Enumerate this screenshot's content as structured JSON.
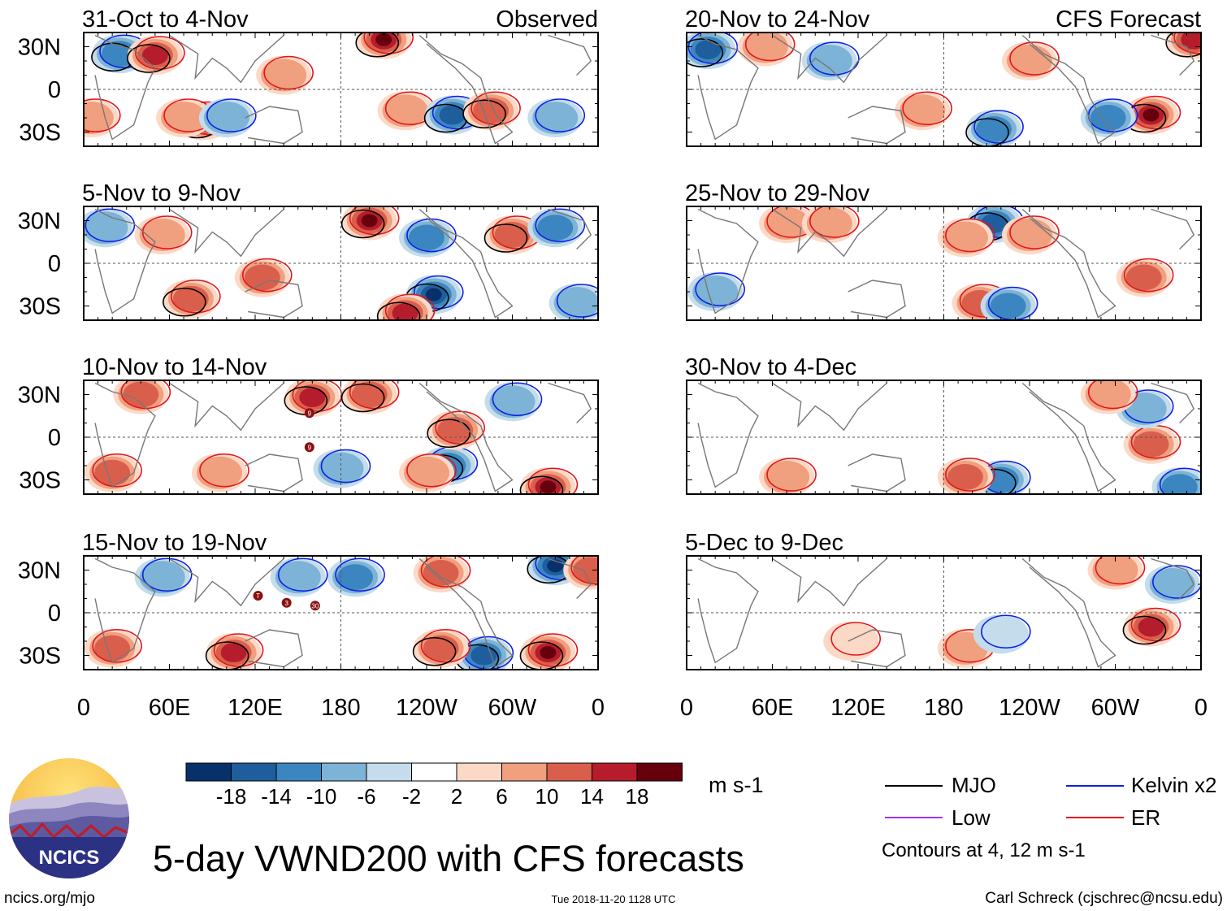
{
  "chart_data": {
    "type": "heatmap",
    "title": "5-day VWND200 with CFS forecasts",
    "variable": "VWND200",
    "units": "m s-1",
    "x_axis": {
      "tick_labels": [
        "0",
        "60E",
        "120E",
        "180",
        "120W",
        "60W",
        "0"
      ],
      "tick_values_deg_east": [
        0,
        60,
        120,
        180,
        240,
        300,
        360
      ],
      "range_deg_east": [
        0,
        360
      ]
    },
    "y_axis": {
      "tick_labels": [
        "30N",
        "0",
        "30S"
      ],
      "tick_values_deg": [
        30,
        0,
        -30
      ],
      "range_deg": [
        -40,
        40
      ]
    },
    "observed_label": "Observed",
    "forecast_label": "CFS Forecast",
    "panels_observed": [
      {
        "label": "31-Oct to 4-Nov",
        "cells": [
          {
            "lon": 25,
            "lat": 25,
            "v": -12
          },
          {
            "lon": 50,
            "lat": 24,
            "v": 14
          },
          {
            "lon": 84,
            "lat": -22,
            "v": 22
          },
          {
            "lon": 70,
            "lat": -20,
            "v": 6
          },
          {
            "lon": 100,
            "lat": -20,
            "v": -8
          },
          {
            "lon": 140,
            "lat": 10,
            "v": 6
          },
          {
            "lon": 210,
            "lat": 35,
            "v": 18
          },
          {
            "lon": 225,
            "lat": -15,
            "v": 8
          },
          {
            "lon": 258,
            "lat": -18,
            "v": -14
          },
          {
            "lon": 285,
            "lat": -15,
            "v": 12
          },
          {
            "lon": 330,
            "lat": -20,
            "v": -8
          },
          {
            "lon": 5,
            "lat": -20,
            "v": 8
          }
        ]
      },
      {
        "label": "5-Nov to 9-Nov",
        "cells": [
          {
            "lon": 15,
            "lat": 25,
            "v": -6
          },
          {
            "lon": 55,
            "lat": 20,
            "v": 8
          },
          {
            "lon": 75,
            "lat": -25,
            "v": 12
          },
          {
            "lon": 125,
            "lat": -10,
            "v": 10
          },
          {
            "lon": 200,
            "lat": 30,
            "v": 22
          },
          {
            "lon": 245,
            "lat": -22,
            "v": -18
          },
          {
            "lon": 240,
            "lat": 18,
            "v": -10
          },
          {
            "lon": 225,
            "lat": -35,
            "v": 14
          },
          {
            "lon": 300,
            "lat": 20,
            "v": 12
          },
          {
            "lon": 330,
            "lat": 25,
            "v": -10
          },
          {
            "lon": 345,
            "lat": -28,
            "v": -8
          }
        ]
      },
      {
        "label": "10-Nov to 14-Nov",
        "cells": [
          {
            "lon": 40,
            "lat": 30,
            "v": 10
          },
          {
            "lon": 160,
            "lat": 28,
            "v": 14
          },
          {
            "lon": 200,
            "lat": 30,
            "v": 12
          },
          {
            "lon": 255,
            "lat": -20,
            "v": -12
          },
          {
            "lon": 260,
            "lat": 5,
            "v": 12
          },
          {
            "lon": 240,
            "lat": -25,
            "v": 8
          },
          {
            "lon": 180,
            "lat": -22,
            "v": -8
          },
          {
            "lon": 325,
            "lat": -35,
            "v": 22
          },
          {
            "lon": 300,
            "lat": 25,
            "v": -8
          },
          {
            "lon": 95,
            "lat": -25,
            "v": 8
          },
          {
            "lon": 20,
            "lat": -25,
            "v": 10
          }
        ]
      },
      {
        "label": "15-Nov to 19-Nov",
        "cells": [
          {
            "lon": 330,
            "lat": 33,
            "v": -22
          },
          {
            "lon": 325,
            "lat": -28,
            "v": 22
          },
          {
            "lon": 280,
            "lat": -30,
            "v": -16
          },
          {
            "lon": 250,
            "lat": -25,
            "v": 12
          },
          {
            "lon": 105,
            "lat": -28,
            "v": 14
          },
          {
            "lon": 20,
            "lat": -25,
            "v": 10
          },
          {
            "lon": 190,
            "lat": 25,
            "v": -10
          },
          {
            "lon": 250,
            "lat": 28,
            "v": 10
          },
          {
            "lon": 150,
            "lat": 25,
            "v": -8
          },
          {
            "lon": 55,
            "lat": 25,
            "v": -6
          },
          {
            "lon": 355,
            "lat": 30,
            "v": 10
          }
        ]
      }
    ],
    "panels_forecast": [
      {
        "label": "20-Nov to 24-Nov",
        "cells": [
          {
            "lon": 15,
            "lat": 28,
            "v": -14
          },
          {
            "lon": 325,
            "lat": -18,
            "v": 18
          },
          {
            "lon": 295,
            "lat": -20,
            "v": -10
          },
          {
            "lon": 215,
            "lat": -28,
            "v": -12
          },
          {
            "lon": 240,
            "lat": 20,
            "v": 8
          },
          {
            "lon": 100,
            "lat": 20,
            "v": -6
          },
          {
            "lon": 355,
            "lat": 35,
            "v": 14
          },
          {
            "lon": 55,
            "lat": 30,
            "v": 8
          },
          {
            "lon": 165,
            "lat": -15,
            "v": 6
          }
        ]
      },
      {
        "label": "25-Nov to 29-Nov",
        "cells": [
          {
            "lon": 215,
            "lat": 28,
            "v": -16
          },
          {
            "lon": 195,
            "lat": 18,
            "v": 8
          },
          {
            "lon": 240,
            "lat": 20,
            "v": 6
          },
          {
            "lon": 205,
            "lat": -28,
            "v": 10
          },
          {
            "lon": 225,
            "lat": -30,
            "v": -10
          },
          {
            "lon": 320,
            "lat": -10,
            "v": 10
          },
          {
            "lon": 70,
            "lat": 28,
            "v": 8
          },
          {
            "lon": 100,
            "lat": 28,
            "v": 8
          },
          {
            "lon": 20,
            "lat": -20,
            "v": -6
          }
        ]
      },
      {
        "label": "30-Nov to 4-Dec",
        "cells": [
          {
            "lon": 220,
            "lat": -30,
            "v": -12
          },
          {
            "lon": 195,
            "lat": -28,
            "v": 10
          },
          {
            "lon": 325,
            "lat": -5,
            "v": 10
          },
          {
            "lon": 345,
            "lat": -35,
            "v": -10
          },
          {
            "lon": 320,
            "lat": 20,
            "v": -6
          },
          {
            "lon": 295,
            "lat": 30,
            "v": 6
          },
          {
            "lon": 70,
            "lat": -28,
            "v": 6
          }
        ]
      },
      {
        "label": "5-Dec to 9-Dec",
        "cells": [
          {
            "lon": 325,
            "lat": -10,
            "v": 14
          },
          {
            "lon": 340,
            "lat": 20,
            "v": -6
          },
          {
            "lon": 300,
            "lat": 30,
            "v": 6
          },
          {
            "lon": 195,
            "lat": -25,
            "v": 6
          },
          {
            "lon": 220,
            "lat": -15,
            "v": -4
          },
          {
            "lon": 115,
            "lat": -20,
            "v": 4
          }
        ]
      }
    ],
    "colorbar": {
      "labels": [
        "-18",
        "-14",
        "-10",
        "-6",
        "-2",
        "2",
        "6",
        "10",
        "14",
        "18"
      ],
      "colors": [
        "#08306b",
        "#1f5e9c",
        "#3b86c0",
        "#7db3d6",
        "#c4dcec",
        "#ffffff",
        "#fcd9c6",
        "#f09f7f",
        "#d95f4c",
        "#b51d2c",
        "#67000d"
      ]
    },
    "legend": {
      "entries": [
        {
          "label": "MJO",
          "color": "#000000"
        },
        {
          "label": "Kelvin x2",
          "color": "#0a1fe6"
        },
        {
          "label": "Low",
          "color": "#9d34e0"
        },
        {
          "label": "ER",
          "color": "#e1141b"
        }
      ],
      "note": "Contours at 4, 12 m s-1"
    },
    "storm_markers": [
      "9",
      "T",
      "3",
      "30"
    ]
  },
  "footer": {
    "logo_text": "NCICS",
    "url": "ncics.org/mjo",
    "timestamp": "Tue 2018-11-20 1128 UTC",
    "credit": "Carl Schreck (cjschrec@ncsu.edu)"
  }
}
